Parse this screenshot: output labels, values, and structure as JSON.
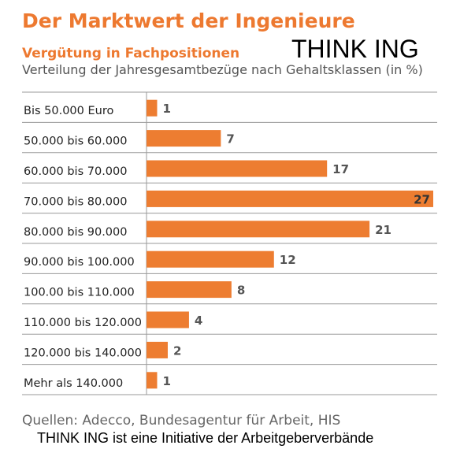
{
  "header": {
    "title": "Der Marktwert der Ingenieure",
    "subtitle": "Vergütung in Fachpositionen",
    "brand": "THINK ING",
    "description": "Verteilung der Jahresgesamtbezüge nach Gehaltsklassen (in %)"
  },
  "footer": {
    "source": "Quellen: Adecco, Bundesagentur für Arbeit, HIS",
    "initiative": "THINK ING ist eine Initiative der Arbeitgeberverbände"
  },
  "colors": {
    "accent": "#ED7930",
    "bar": "#ED7D31",
    "grid": "#9a9a9a",
    "value_label": "#555555"
  },
  "chart_data": {
    "type": "bar",
    "orientation": "horizontal",
    "title": "Der Marktwert der Ingenieure",
    "subtitle": "Vergütung in Fachpositionen",
    "ylabel": "Verteilung der Jahresgesamtbezüge nach Gehaltsklassen (in %)",
    "xlabel": "",
    "categories": [
      "Bis 50.000 Euro",
      "50.000 bis 60.000",
      "60.000 bis 70.000",
      "70.000 bis 80.000",
      "80.000 bis 90.000",
      "90.000 bis 100.000",
      "100.00 bis 110.000",
      "110.000 bis 120.000",
      "120.000 bis 140.000",
      "Mehr als 140.000"
    ],
    "values": [
      1,
      7,
      17,
      27,
      21,
      12,
      8,
      4,
      2,
      1
    ],
    "xlim": [
      0,
      27
    ],
    "grid": true,
    "data_labels": true
  }
}
